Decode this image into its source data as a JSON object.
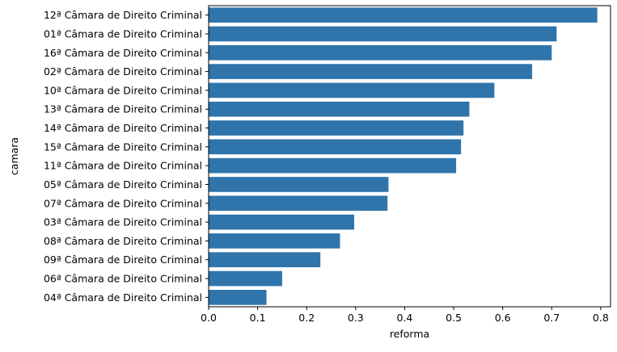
{
  "chart_data": {
    "type": "bar",
    "orientation": "horizontal",
    "xlabel": "reforma",
    "ylabel": "camara",
    "xlim": [
      0,
      0.82
    ],
    "x_ticks": [
      "0.0",
      "0.1",
      "0.2",
      "0.3",
      "0.4",
      "0.5",
      "0.6",
      "0.7",
      "0.8"
    ],
    "x_tick_values": [
      0.0,
      0.1,
      0.2,
      0.3,
      0.4,
      0.5,
      0.6,
      0.7,
      0.8
    ],
    "grid": false,
    "bar_color": "#2f75ab",
    "categories": [
      "12ª Câmara de Direito Criminal",
      "01ª Câmara de Direito Criminal",
      "16ª Câmara de Direito Criminal",
      "02ª Câmara de Direito Criminal",
      "10ª Câmara de Direito Criminal",
      "13ª Câmara de Direito Criminal",
      "14ª Câmara de Direito Criminal",
      "15ª Câmara de Direito Criminal",
      "11ª Câmara de Direito Criminal",
      "05ª Câmara de Direito Criminal",
      "07ª Câmara de Direito Criminal",
      "03ª Câmara de Direito Criminal",
      "08ª Câmara de Direito Criminal",
      "09ª Câmara de Direito Criminal",
      "06ª Câmara de Direito Criminal",
      "04ª Câmara de Direito Criminal"
    ],
    "values": [
      0.793,
      0.71,
      0.7,
      0.66,
      0.583,
      0.532,
      0.52,
      0.515,
      0.505,
      0.367,
      0.365,
      0.297,
      0.268,
      0.228,
      0.15,
      0.118
    ]
  }
}
